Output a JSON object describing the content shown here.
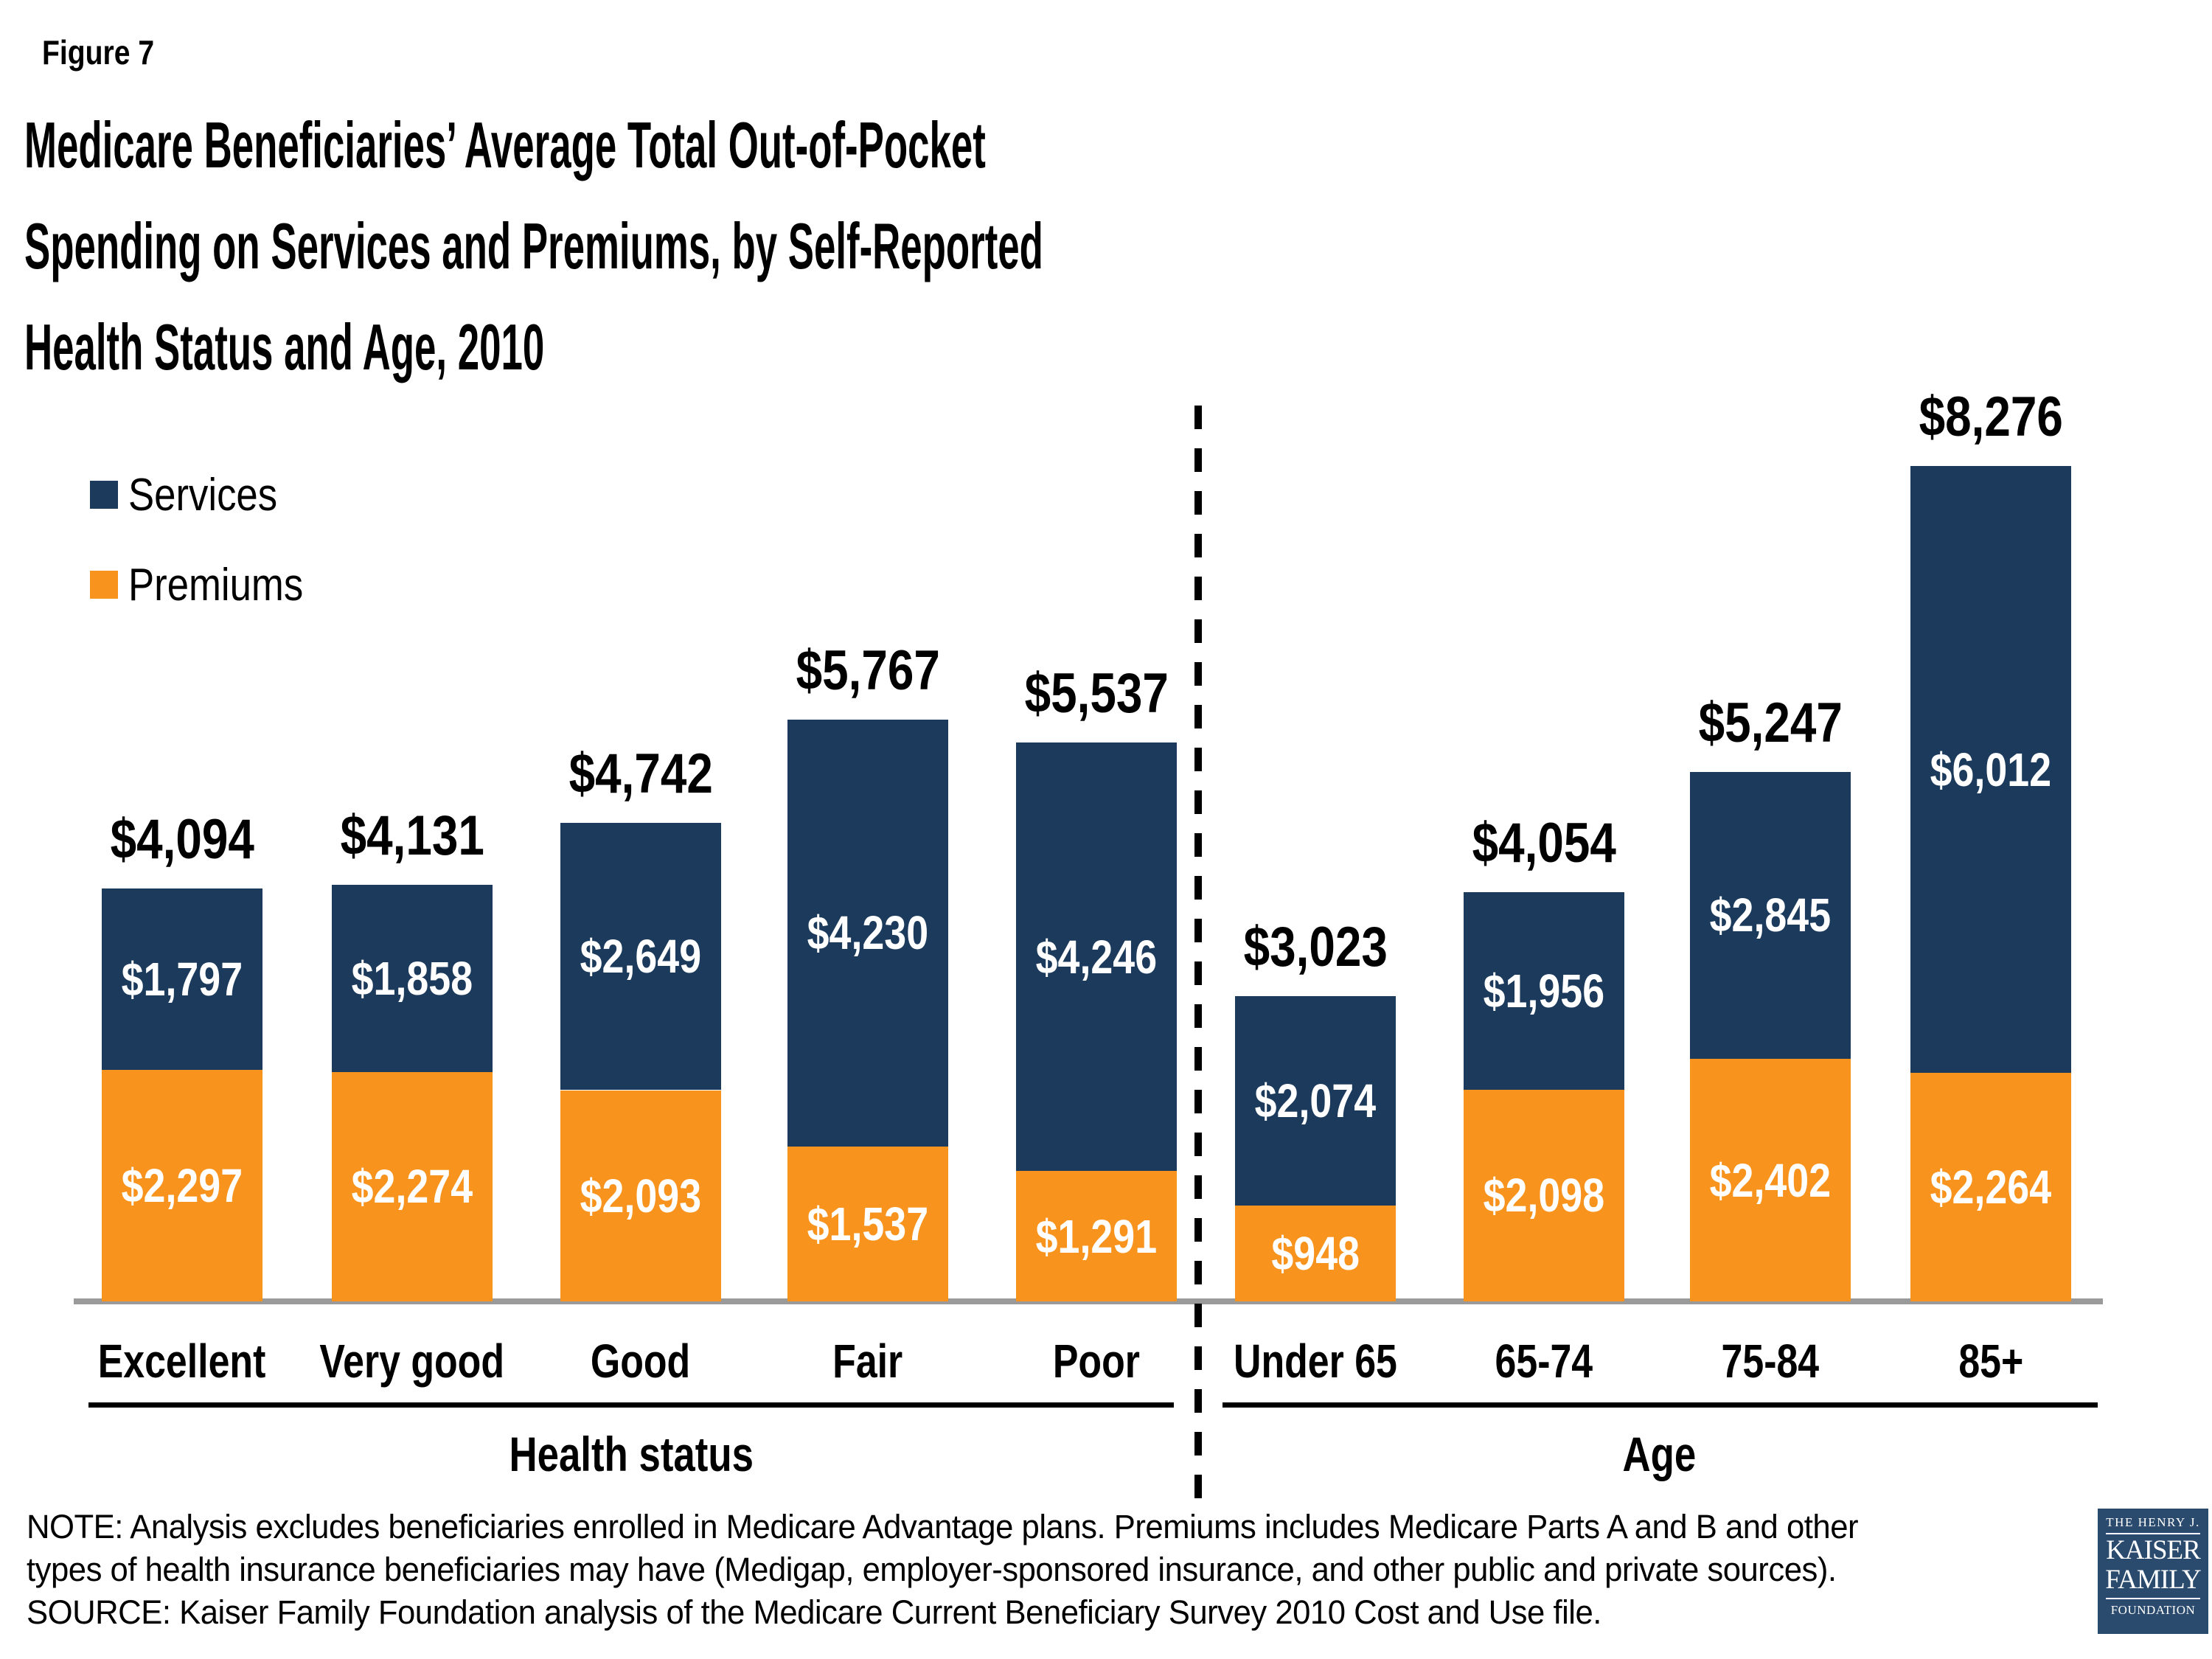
{
  "figure_label": "Figure 7",
  "title_lines": [
    "Medicare Beneficiaries’ Average Total Out-of-Pocket",
    "Spending on Services and Premiums, by Self-Reported",
    "Health Status and Age, 2010"
  ],
  "legend": {
    "services_label": "Services",
    "premiums_label": "Premiums"
  },
  "colors": {
    "services": "#1B3A5C",
    "premiums": "#F8941D",
    "axis_line": "#9A9A9A",
    "divider": "#000000",
    "logo_bg": "#2A4A6E",
    "text": "#000000",
    "inner_label_text": "#FFFFFF"
  },
  "chart_data": {
    "type": "bar",
    "subtype": "stacked",
    "title": "Medicare Beneficiaries’ Average Total Out-of-Pocket Spending on Services and Premiums, by Self-Reported Health Status and Age, 2010",
    "unit": "USD",
    "ylim": [
      0,
      8276
    ],
    "grid": false,
    "legend_position": "top-left",
    "categories": [
      "Excellent",
      "Very good",
      "Good",
      "Fair",
      "Poor",
      "Under 65",
      "65-74",
      "75-84",
      "85+"
    ],
    "group_labels": [
      "Health status",
      "Age"
    ],
    "group_sizes": [
      5,
      4
    ],
    "series": [
      {
        "name": "Services",
        "color": "#1B3A5C",
        "values": [
          1797,
          1858,
          2649,
          4230,
          4246,
          2074,
          1956,
          2845,
          6012
        ],
        "labels": [
          "$1,797",
          "$1,858",
          "$2,649",
          "$4,230",
          "$4,246",
          "$2,074",
          "$1,956",
          "$2,845",
          "$6,012"
        ]
      },
      {
        "name": "Premiums",
        "color": "#F8941D",
        "values": [
          2297,
          2274,
          2093,
          1537,
          1291,
          948,
          2098,
          2402,
          2264
        ],
        "labels": [
          "$2,297",
          "$2,274",
          "$2,093",
          "$1,537",
          "$1,291",
          "$948",
          "$2,098",
          "$2,402",
          "$2,264"
        ]
      }
    ],
    "totals": [
      4094,
      4131,
      4742,
      5767,
      5537,
      3023,
      4054,
      5247,
      8276
    ],
    "total_labels": [
      "$4,094",
      "$4,131",
      "$4,742",
      "$5,767",
      "$5,537",
      "$3,023",
      "$4,054",
      "$5,247",
      "$8,276"
    ]
  },
  "note_lines": [
    "NOTE: Analysis excludes beneficiaries enrolled in Medicare Advantage plans. Premiums includes Medicare Parts A and B and other",
    "types of health insurance beneficiaries may have (Medigap, employer-sponsored insurance, and other public and private sources).",
    "SOURCE: Kaiser Family Foundation analysis of the Medicare Current Beneficiary Survey 2010 Cost and Use file."
  ],
  "logo": {
    "line1": "THE HENRY J.",
    "line2": "KAISER",
    "line3": "FAMILY",
    "line4": "FOUNDATION"
  }
}
